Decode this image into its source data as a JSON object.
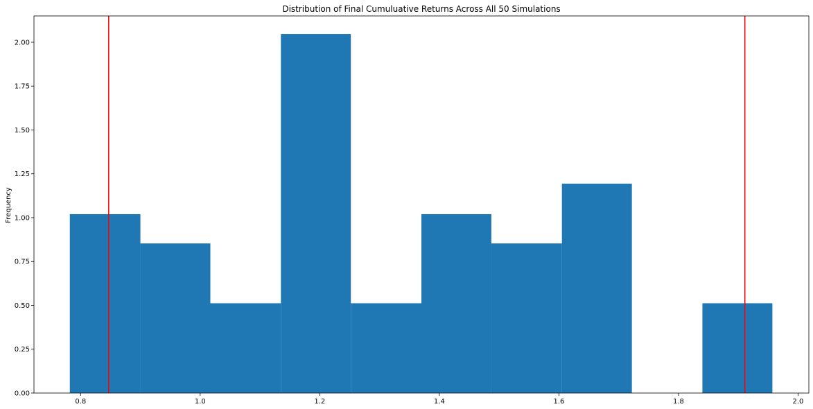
{
  "chart_data": {
    "type": "bar",
    "title": "Distribution of Final Cumuluative Returns Across All 50 Simulations",
    "xlabel": "",
    "ylabel": "Frequency",
    "xlim": [
      0.722,
      2.018
    ],
    "ylim": [
      0,
      2.15
    ],
    "grid": false,
    "legend": "none",
    "bar_color": "#1f77b4",
    "bins": [
      {
        "x0": 0.782,
        "x1": 0.9,
        "value": 1.02
      },
      {
        "x0": 0.9,
        "x1": 1.017,
        "value": 0.853
      },
      {
        "x0": 1.017,
        "x1": 1.135,
        "value": 0.512
      },
      {
        "x0": 1.135,
        "x1": 1.252,
        "value": 2.047
      },
      {
        "x0": 1.252,
        "x1": 1.37,
        "value": 0.512
      },
      {
        "x0": 1.37,
        "x1": 1.487,
        "value": 1.02
      },
      {
        "x0": 1.487,
        "x1": 1.605,
        "value": 0.853
      },
      {
        "x0": 1.605,
        "x1": 1.722,
        "value": 1.194
      },
      {
        "x0": 1.722,
        "x1": 1.84,
        "value": 0
      },
      {
        "x0": 1.84,
        "x1": 1.957,
        "value": 0.512
      }
    ],
    "vlines": [
      {
        "x": 0.847,
        "color": "#ff0000"
      },
      {
        "x": 1.911,
        "color": "#ff0000"
      }
    ],
    "x_ticks": [
      0.8,
      1.0,
      1.2,
      1.4,
      1.6,
      1.8,
      2.0
    ],
    "x_tick_labels": [
      "0.8",
      "1.0",
      "1.2",
      "1.4",
      "1.6",
      "1.8",
      "2.0"
    ],
    "y_ticks": [
      0,
      0.25,
      0.5,
      0.75,
      1.0,
      1.25,
      1.5,
      1.75,
      2.0
    ],
    "y_tick_labels": [
      "0.00",
      "0.25",
      "0.50",
      "0.75",
      "1.00",
      "1.25",
      "1.50",
      "1.75",
      "2.00"
    ]
  }
}
